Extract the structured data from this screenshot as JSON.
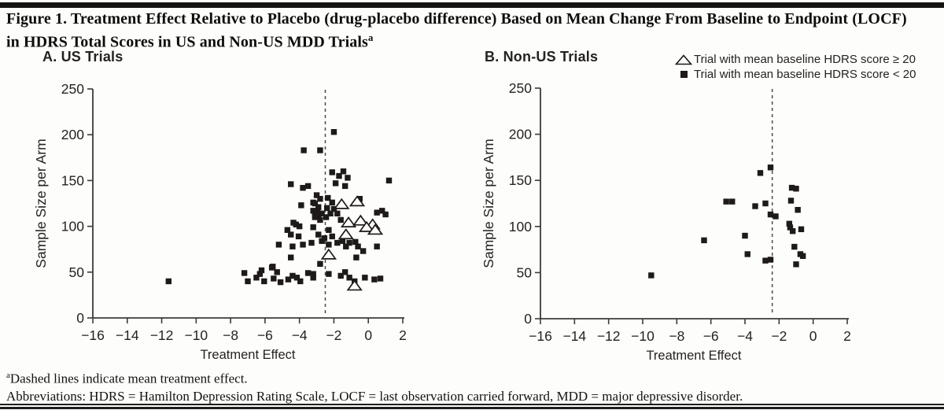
{
  "header": {
    "title_line1": "Figure 1. Treatment Effect Relative to Placebo (drug-placebo difference) Based on Mean Change From Baseline to Endpoint (LOCF)",
    "title_line2": "in HDRS Total Scores in US and Non-US MDD Trials",
    "title_sup": "a"
  },
  "legend": {
    "items": [
      {
        "marker": "triangle",
        "label": "Trial with mean baseline HDRS score ≥ 20"
      },
      {
        "marker": "square",
        "label": "Trial with mean baseline HDRS score < 20"
      }
    ]
  },
  "footnotes": {
    "sup": "a",
    "dashed_note": "Dashed lines indicate mean treatment effect.",
    "abbreviations": "Abbreviations: HDRS = Hamilton Depression Rating Scale, LOCF = last observation carried forward, MDD = major depressive disorder."
  },
  "colors": {
    "ink": "#1d1a19",
    "axis": "#3d3b39",
    "dashed": "#4d4b49",
    "paper": "#fdfdfb",
    "text": "#252220"
  },
  "chart_data": [
    {
      "type": "scatter",
      "title": "A. US Trials",
      "xlabel": "Treatment Effect",
      "ylabel": "Sample Size per Arm",
      "xlim": [
        -16,
        2
      ],
      "ylim": [
        0,
        250
      ],
      "xticks": [
        -16,
        -14,
        -12,
        -10,
        -8,
        -6,
        -4,
        -2,
        0,
        2
      ],
      "yticks": [
        0,
        50,
        100,
        150,
        200,
        250
      ],
      "dashed_line_x": -2.5,
      "series": [
        {
          "name": "Trial with mean baseline HDRS score < 20",
          "marker": "square",
          "points": [
            [
              -11.6,
              40
            ],
            [
              -2.0,
              203
            ],
            [
              -3.75,
              183
            ],
            [
              -2.8,
              183
            ],
            [
              -4.5,
              146
            ],
            [
              -3.8,
              142
            ],
            [
              -3.5,
              144
            ],
            [
              -2.1,
              159
            ],
            [
              -1.7,
              155
            ],
            [
              -1.45,
              160
            ],
            [
              -1.2,
              153
            ],
            [
              -1.9,
              147
            ],
            [
              -1.35,
              144
            ],
            [
              1.2,
              150
            ],
            [
              -3.0,
              134
            ],
            [
              -2.8,
              130
            ],
            [
              -3.2,
              126
            ],
            [
              -2.9,
              121
            ],
            [
              -3.2,
              117
            ],
            [
              -2.35,
              131
            ],
            [
              -2.1,
              126
            ],
            [
              -2.4,
              120
            ],
            [
              -2.0,
              119
            ],
            [
              -0.5,
              130
            ],
            [
              -3.9,
              123
            ],
            [
              -3.1,
              125
            ],
            [
              -3.1,
              116
            ],
            [
              -2.9,
              112
            ],
            [
              -4.2,
              102
            ],
            [
              -4.0,
              100
            ],
            [
              -4.7,
              96
            ],
            [
              -3.2,
              99
            ],
            [
              -1.8,
              114
            ],
            [
              -2.7,
              114
            ],
            [
              0.5,
              115
            ],
            [
              0.8,
              117
            ],
            [
              1.0,
              113
            ],
            [
              -1.6,
              107
            ],
            [
              -3.1,
              110
            ],
            [
              -2.8,
              107
            ],
            [
              -2.45,
              110
            ],
            [
              -2.95,
              116
            ],
            [
              -2.2,
              114
            ],
            [
              -2.3,
              96
            ],
            [
              -2.9,
              91
            ],
            [
              -2.55,
              87
            ],
            [
              -2.1,
              89
            ],
            [
              -2.7,
              84
            ],
            [
              -2.3,
              80
            ],
            [
              -1.8,
              82
            ],
            [
              -1.5,
              84
            ],
            [
              -1.3,
              78
            ],
            [
              -1.1,
              82
            ],
            [
              -0.75,
              83
            ],
            [
              -0.6,
              78
            ],
            [
              -0.3,
              73
            ],
            [
              0.5,
              78
            ],
            [
              -0.7,
              66
            ],
            [
              -2.8,
              59
            ],
            [
              -3.2,
              48
            ],
            [
              -2.3,
              48
            ],
            [
              -1.6,
              46
            ],
            [
              -1.35,
              50
            ],
            [
              -1.1,
              44
            ],
            [
              -0.8,
              40
            ],
            [
              -0.2,
              44
            ],
            [
              0.35,
              42
            ],
            [
              0.7,
              43
            ],
            [
              -4.5,
              91
            ],
            [
              -4.05,
              89
            ],
            [
              -5.2,
              80
            ],
            [
              -4.4,
              78
            ],
            [
              -3.8,
              80
            ],
            [
              -3.3,
              82
            ],
            [
              -4.5,
              66
            ],
            [
              -5.55,
              56
            ],
            [
              -5.3,
              50
            ],
            [
              -7.2,
              49
            ],
            [
              -6.5,
              44
            ],
            [
              -6.3,
              48
            ],
            [
              -7.0,
              40
            ],
            [
              -6.05,
              40
            ],
            [
              -5.5,
              43
            ],
            [
              -5.1,
              39
            ],
            [
              -4.65,
              42
            ],
            [
              -4.4,
              46
            ],
            [
              -4.15,
              44
            ],
            [
              -3.95,
              40
            ],
            [
              -3.5,
              49
            ],
            [
              -3.2,
              44
            ],
            [
              -6.2,
              52
            ],
            [
              -5.6,
              55
            ],
            [
              -4.35,
              104
            ]
          ]
        },
        {
          "name": "Trial with mean baseline HDRS score ≥ 20",
          "marker": "triangle",
          "points": [
            [
              -1.55,
              124
            ],
            [
              -0.65,
              127
            ],
            [
              -1.15,
              104
            ],
            [
              -0.45,
              106
            ],
            [
              0.25,
              102
            ],
            [
              -0.1,
              99
            ],
            [
              0.4,
              96
            ],
            [
              -1.3,
              91
            ],
            [
              -2.3,
              69
            ],
            [
              -0.8,
              35
            ]
          ]
        }
      ]
    },
    {
      "type": "scatter",
      "title": "B. Non-US Trials",
      "xlabel": "Treatment Effect",
      "ylabel": "Sample Size per Arm",
      "xlim": [
        -16,
        2
      ],
      "ylim": [
        0,
        250
      ],
      "xticks": [
        -16,
        -14,
        -12,
        -10,
        -8,
        -6,
        -4,
        -2,
        0,
        2
      ],
      "yticks": [
        0,
        50,
        100,
        150,
        200,
        250
      ],
      "dashed_line_x": -2.4,
      "series": [
        {
          "name": "Trial with mean baseline HDRS score < 20",
          "marker": "square",
          "points": [
            [
              -9.5,
              47
            ],
            [
              -6.4,
              85
            ],
            [
              -5.1,
              127
            ],
            [
              -4.75,
              127
            ],
            [
              -4.0,
              90
            ],
            [
              -3.85,
              70
            ],
            [
              -3.4,
              122
            ],
            [
              -3.1,
              158
            ],
            [
              -2.8,
              125
            ],
            [
              -2.8,
              63
            ],
            [
              -2.5,
              64
            ],
            [
              -2.5,
              164
            ],
            [
              -2.5,
              113
            ],
            [
              -2.2,
              111
            ],
            [
              -1.3,
              128
            ],
            [
              -1.25,
              142
            ],
            [
              -1.0,
              141
            ],
            [
              -1.4,
              103
            ],
            [
              -1.35,
              99
            ],
            [
              -1.2,
              95
            ],
            [
              -1.1,
              78
            ],
            [
              -0.9,
              118
            ],
            [
              -0.7,
              97
            ],
            [
              -0.75,
              70
            ],
            [
              -0.6,
              68
            ],
            [
              -1.0,
              59
            ]
          ]
        }
      ]
    }
  ]
}
